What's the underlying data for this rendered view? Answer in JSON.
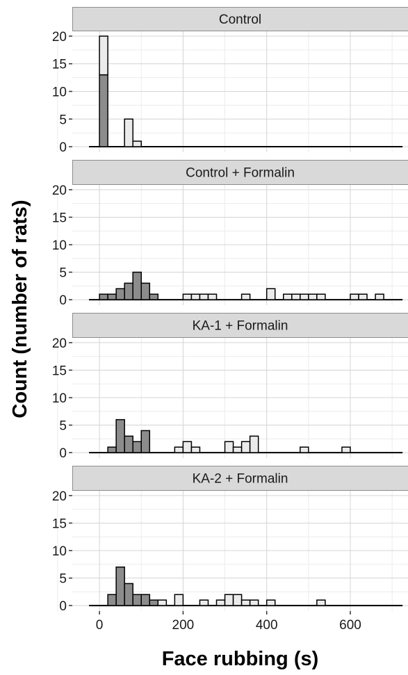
{
  "chart_data": {
    "type": "bar",
    "subtype": "faceted stacked histogram",
    "xlabel": "Face rubbing (s)",
    "ylabel": "Count (number of rats)",
    "bin_width": 20,
    "xlim": [
      -65,
      738
    ],
    "ylim": [
      -1,
      21
    ],
    "x_ticks": [
      0,
      200,
      400,
      600
    ],
    "y_ticks": [
      0,
      5,
      10,
      15,
      20
    ],
    "grid": true,
    "legend": "none",
    "colors": {
      "panel_bg": "#ffffff",
      "strip_bg": "#d9d9d9",
      "strip_border": "#8c8c8c",
      "grid_major": "#d4d4d4",
      "grid_minor": "#ececec",
      "dark_fill": "#8c8c8c",
      "light_fill": "#ebebeb",
      "bar_outline": "#000000"
    },
    "panels": [
      {
        "title": "Control",
        "bins": [
          {
            "x0": 0,
            "dark": 13,
            "light": 7
          },
          {
            "x0": 60,
            "dark": 0,
            "light": 5
          },
          {
            "x0": 80,
            "dark": 0,
            "light": 1
          }
        ]
      },
      {
        "title": "Control + Formalin",
        "bins": [
          {
            "x0": 0,
            "dark": 1,
            "light": 0
          },
          {
            "x0": 20,
            "dark": 1,
            "light": 0
          },
          {
            "x0": 40,
            "dark": 2,
            "light": 0
          },
          {
            "x0": 60,
            "dark": 3,
            "light": 0
          },
          {
            "x0": 80,
            "dark": 5,
            "light": 0
          },
          {
            "x0": 100,
            "dark": 3,
            "light": 0
          },
          {
            "x0": 120,
            "dark": 1,
            "light": 0
          },
          {
            "x0": 200,
            "dark": 0,
            "light": 1
          },
          {
            "x0": 220,
            "dark": 0,
            "light": 1
          },
          {
            "x0": 240,
            "dark": 0,
            "light": 1
          },
          {
            "x0": 260,
            "dark": 0,
            "light": 1
          },
          {
            "x0": 340,
            "dark": 0,
            "light": 1
          },
          {
            "x0": 400,
            "dark": 0,
            "light": 2
          },
          {
            "x0": 440,
            "dark": 0,
            "light": 1
          },
          {
            "x0": 460,
            "dark": 0,
            "light": 1
          },
          {
            "x0": 480,
            "dark": 0,
            "light": 1
          },
          {
            "x0": 500,
            "dark": 0,
            "light": 1
          },
          {
            "x0": 520,
            "dark": 0,
            "light": 1
          },
          {
            "x0": 600,
            "dark": 0,
            "light": 1
          },
          {
            "x0": 620,
            "dark": 0,
            "light": 1
          },
          {
            "x0": 660,
            "dark": 0,
            "light": 1
          }
        ]
      },
      {
        "title": "KA-1 + Formalin",
        "bins": [
          {
            "x0": 20,
            "dark": 1,
            "light": 0
          },
          {
            "x0": 40,
            "dark": 6,
            "light": 0
          },
          {
            "x0": 60,
            "dark": 3,
            "light": 0
          },
          {
            "x0": 80,
            "dark": 2,
            "light": 0
          },
          {
            "x0": 100,
            "dark": 4,
            "light": 0
          },
          {
            "x0": 180,
            "dark": 0,
            "light": 1
          },
          {
            "x0": 200,
            "dark": 0,
            "light": 2
          },
          {
            "x0": 220,
            "dark": 0,
            "light": 1
          },
          {
            "x0": 300,
            "dark": 0,
            "light": 2
          },
          {
            "x0": 320,
            "dark": 0,
            "light": 1
          },
          {
            "x0": 340,
            "dark": 0,
            "light": 2
          },
          {
            "x0": 360,
            "dark": 0,
            "light": 3
          },
          {
            "x0": 480,
            "dark": 0,
            "light": 1
          },
          {
            "x0": 580,
            "dark": 0,
            "light": 1
          }
        ]
      },
      {
        "title": "KA-2 + Formalin",
        "bins": [
          {
            "x0": 20,
            "dark": 2,
            "light": 0
          },
          {
            "x0": 40,
            "dark": 7,
            "light": 0
          },
          {
            "x0": 60,
            "dark": 4,
            "light": 0
          },
          {
            "x0": 80,
            "dark": 2,
            "light": 0
          },
          {
            "x0": 100,
            "dark": 2,
            "light": 0
          },
          {
            "x0": 120,
            "dark": 1,
            "light": 0
          },
          {
            "x0": 140,
            "dark": 0,
            "light": 1
          },
          {
            "x0": 180,
            "dark": 0,
            "light": 2
          },
          {
            "x0": 240,
            "dark": 0,
            "light": 1
          },
          {
            "x0": 280,
            "dark": 0,
            "light": 1
          },
          {
            "x0": 300,
            "dark": 0,
            "light": 2
          },
          {
            "x0": 320,
            "dark": 0,
            "light": 2
          },
          {
            "x0": 340,
            "dark": 0,
            "light": 1
          },
          {
            "x0": 360,
            "dark": 0,
            "light": 1
          },
          {
            "x0": 400,
            "dark": 0,
            "light": 1
          },
          {
            "x0": 520,
            "dark": 0,
            "light": 1
          }
        ]
      }
    ]
  }
}
